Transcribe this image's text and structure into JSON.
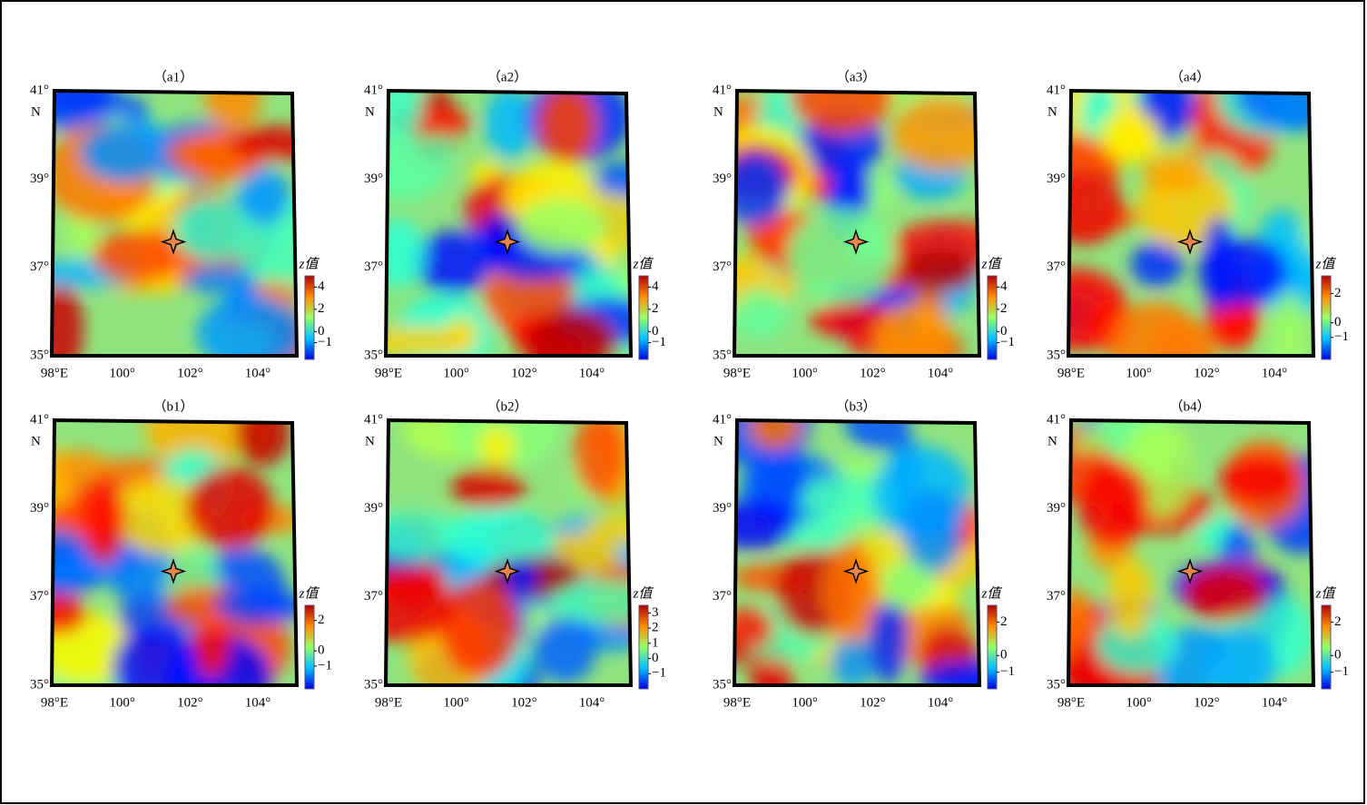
{
  "panels": [
    {
      "label": "（a1）",
      "colorbar": {
        "title": "z值",
        "ylim": [
          -2.5,
          5
        ],
        "ticks": [
          4,
          2,
          0,
          {
            "value": -1,
            "label": "−1"
          }
        ]
      }
    },
    {
      "label": "（a2）",
      "colorbar": {
        "title": "z值",
        "ylim": [
          -2.5,
          5
        ],
        "ticks": [
          4,
          2,
          0,
          {
            "value": -1,
            "label": "−1"
          }
        ]
      }
    },
    {
      "label": "（a3）",
      "colorbar": {
        "title": "z值",
        "ylim": [
          -2.5,
          5
        ],
        "ticks": [
          4,
          2,
          0,
          {
            "value": -1,
            "label": "−1"
          }
        ]
      }
    },
    {
      "label": "（a4）",
      "colorbar": {
        "title": "z值",
        "ylim": [
          -2.5,
          3.2
        ],
        "ticks": [
          2,
          0,
          {
            "value": -1,
            "label": "−1"
          }
        ]
      }
    },
    {
      "label": "（b1）",
      "colorbar": {
        "title": "z值",
        "ylim": [
          -2.5,
          3
        ],
        "ticks": [
          2,
          0,
          {
            "value": -1,
            "label": "−1"
          }
        ]
      }
    },
    {
      "label": "（b2）",
      "colorbar": {
        "title": "z值",
        "ylim": [
          -2,
          3.5
        ],
        "ticks": [
          3,
          2,
          1,
          0,
          {
            "value": -1,
            "label": "−1"
          }
        ]
      }
    },
    {
      "label": "（b3）",
      "colorbar": {
        "title": "z值",
        "ylim": [
          -2,
          3
        ],
        "ticks": [
          2,
          0,
          {
            "value": -1,
            "label": "−1"
          }
        ]
      }
    },
    {
      "label": "（b4）",
      "colorbar": {
        "title": "z值",
        "ylim": [
          -2,
          3
        ],
        "ticks": [
          2,
          0,
          {
            "value": -1,
            "label": "−1"
          }
        ]
      }
    }
  ],
  "lat_labels": [
    "41°",
    "39°",
    "37°",
    "35°"
  ],
  "lat_unit": "N",
  "lon_labels": [
    "98°E",
    "100°",
    "102°",
    "104°"
  ]
}
